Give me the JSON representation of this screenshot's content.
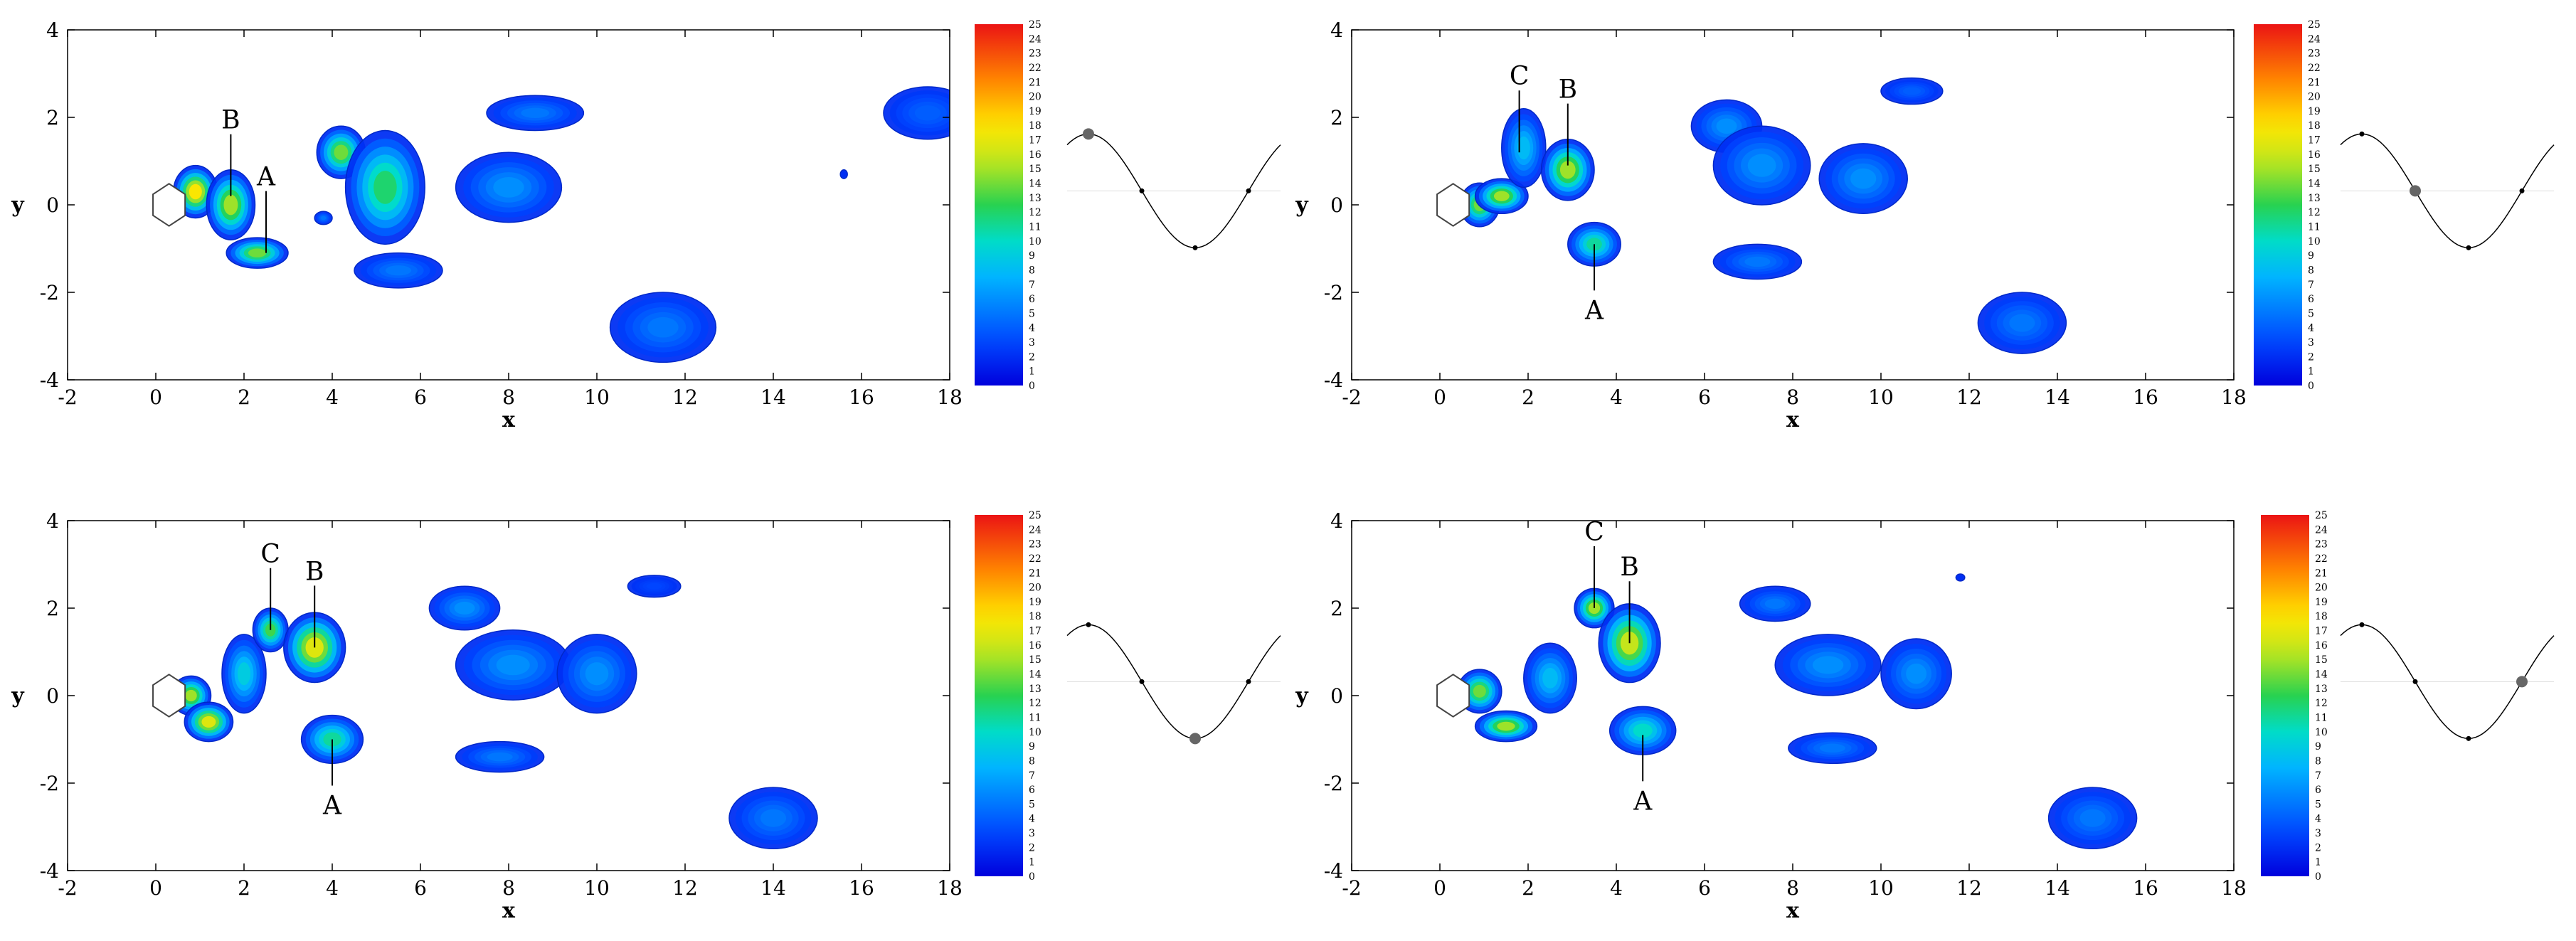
{
  "chart_data": [
    {
      "type": "contour",
      "panel": "top-left",
      "xlabel": "x",
      "ylabel": "y",
      "xlim": [
        -2,
        18
      ],
      "ylim": [
        -4,
        4
      ],
      "xticks": [
        "-2",
        "0",
        "2",
        "4",
        "6",
        "8",
        "10",
        "12",
        "14",
        "16",
        "18"
      ],
      "yticks": [
        "-4",
        "-2",
        "0",
        "2",
        "4"
      ],
      "colorbar": {
        "min": 0,
        "max": 25,
        "ticks": [
          "0",
          "1",
          "2",
          "3",
          "4",
          "5",
          "6",
          "7",
          "8",
          "9",
          "10",
          "11",
          "12",
          "13",
          "14",
          "15",
          "16",
          "17",
          "18",
          "19",
          "20",
          "21",
          "22",
          "23",
          "24",
          "25"
        ]
      },
      "annotations": [
        {
          "label": "B",
          "point": [
            1.7,
            0.2
          ]
        },
        {
          "label": "A",
          "point": [
            2.5,
            -1.1
          ]
        }
      ],
      "phase": 0.25,
      "vortices": [
        {
          "x": 0.9,
          "y": 0.3,
          "rx": 0.5,
          "ry": 0.6,
          "peak": 18
        },
        {
          "x": 1.7,
          "y": 0.0,
          "rx": 0.55,
          "ry": 0.8,
          "peak": 15
        },
        {
          "x": 2.3,
          "y": -1.1,
          "rx": 0.7,
          "ry": 0.35,
          "peak": 14
        },
        {
          "x": 4.2,
          "y": 1.2,
          "rx": 0.55,
          "ry": 0.6,
          "peak": 14
        },
        {
          "x": 5.2,
          "y": 0.4,
          "rx": 0.9,
          "ry": 1.3,
          "peak": 12
        },
        {
          "x": 3.8,
          "y": -0.3,
          "rx": 0.2,
          "ry": 0.15,
          "peak": 5
        },
        {
          "x": 8.6,
          "y": 2.1,
          "rx": 1.1,
          "ry": 0.4,
          "peak": 5
        },
        {
          "x": 8.0,
          "y": 0.4,
          "rx": 1.2,
          "ry": 0.8,
          "peak": 6
        },
        {
          "x": 5.5,
          "y": -1.5,
          "rx": 1.0,
          "ry": 0.4,
          "peak": 5
        },
        {
          "x": 11.5,
          "y": -2.8,
          "rx": 1.2,
          "ry": 0.8,
          "peak": 5
        },
        {
          "x": 17.5,
          "y": 2.1,
          "rx": 1.0,
          "ry": 0.6,
          "peak": 4
        },
        {
          "x": 15.6,
          "y": 0.7,
          "rx": 0.08,
          "ry": 0.1,
          "peak": 2
        }
      ]
    },
    {
      "type": "contour",
      "panel": "top-right",
      "xlabel": "x",
      "ylabel": "y",
      "xlim": [
        -2,
        18
      ],
      "ylim": [
        -4,
        4
      ],
      "xticks": [
        "-2",
        "0",
        "2",
        "4",
        "6",
        "8",
        "10",
        "12",
        "14",
        "16",
        "18"
      ],
      "yticks": [
        "-4",
        "-2",
        "0",
        "2",
        "4"
      ],
      "colorbar": {
        "min": 0,
        "max": 25,
        "ticks": [
          "0",
          "1",
          "2",
          "3",
          "4",
          "5",
          "6",
          "7",
          "8",
          "9",
          "10",
          "11",
          "12",
          "13",
          "14",
          "15",
          "16",
          "17",
          "18",
          "19",
          "20",
          "21",
          "22",
          "23",
          "24",
          "25"
        ]
      },
      "annotations": [
        {
          "label": "C",
          "point": [
            1.8,
            1.2
          ]
        },
        {
          "label": "B",
          "point": [
            2.9,
            0.9
          ]
        },
        {
          "label": "A",
          "point": [
            3.5,
            -0.9
          ]
        }
      ],
      "phase": 0.5,
      "vortices": [
        {
          "x": 0.9,
          "y": 0.0,
          "rx": 0.45,
          "ry": 0.5,
          "peak": 14
        },
        {
          "x": 1.4,
          "y": 0.2,
          "rx": 0.6,
          "ry": 0.4,
          "peak": 15
        },
        {
          "x": 1.9,
          "y": 1.3,
          "rx": 0.5,
          "ry": 0.9,
          "peak": 8
        },
        {
          "x": 2.9,
          "y": 0.8,
          "rx": 0.6,
          "ry": 0.7,
          "peak": 15
        },
        {
          "x": 3.5,
          "y": -0.9,
          "rx": 0.6,
          "ry": 0.5,
          "peak": 11
        },
        {
          "x": 6.5,
          "y": 1.8,
          "rx": 0.8,
          "ry": 0.6,
          "peak": 6
        },
        {
          "x": 7.3,
          "y": 0.9,
          "rx": 1.1,
          "ry": 0.9,
          "peak": 6
        },
        {
          "x": 9.6,
          "y": 0.6,
          "rx": 1.0,
          "ry": 0.8,
          "peak": 6
        },
        {
          "x": 10.7,
          "y": 2.6,
          "rx": 0.7,
          "ry": 0.3,
          "peak": 4
        },
        {
          "x": 7.2,
          "y": -1.3,
          "rx": 1.0,
          "ry": 0.4,
          "peak": 5
        },
        {
          "x": 13.2,
          "y": -2.7,
          "rx": 1.0,
          "ry": 0.7,
          "peak": 5
        }
      ]
    },
    {
      "type": "contour",
      "panel": "bottom-left",
      "xlabel": "x",
      "ylabel": "y",
      "xlim": [
        -2,
        18
      ],
      "ylim": [
        -4,
        4
      ],
      "xticks": [
        "-2",
        "0",
        "2",
        "4",
        "6",
        "8",
        "10",
        "12",
        "14",
        "16",
        "18"
      ],
      "yticks": [
        "-4",
        "-2",
        "0",
        "2",
        "4"
      ],
      "colorbar": {
        "min": 0,
        "max": 25,
        "ticks": [
          "0",
          "1",
          "2",
          "3",
          "4",
          "5",
          "6",
          "7",
          "8",
          "9",
          "10",
          "11",
          "12",
          "13",
          "14",
          "15",
          "16",
          "17",
          "18",
          "19",
          "20",
          "21",
          "22",
          "23",
          "24",
          "25"
        ]
      },
      "annotations": [
        {
          "label": "C",
          "point": [
            2.6,
            1.5
          ]
        },
        {
          "label": "B",
          "point": [
            3.6,
            1.1
          ]
        },
        {
          "label": "A",
          "point": [
            4.0,
            -1.0
          ]
        }
      ],
      "phase": 0.75,
      "vortices": [
        {
          "x": 0.8,
          "y": 0.0,
          "rx": 0.45,
          "ry": 0.45,
          "peak": 15
        },
        {
          "x": 1.2,
          "y": -0.6,
          "rx": 0.55,
          "ry": 0.45,
          "peak": 17
        },
        {
          "x": 2.0,
          "y": 0.5,
          "rx": 0.5,
          "ry": 0.9,
          "peak": 9
        },
        {
          "x": 2.6,
          "y": 1.5,
          "rx": 0.4,
          "ry": 0.5,
          "peak": 13
        },
        {
          "x": 3.6,
          "y": 1.1,
          "rx": 0.7,
          "ry": 0.8,
          "peak": 17
        },
        {
          "x": 4.0,
          "y": -1.0,
          "rx": 0.7,
          "ry": 0.55,
          "peak": 11
        },
        {
          "x": 7.0,
          "y": 2.0,
          "rx": 0.8,
          "ry": 0.5,
          "peak": 6
        },
        {
          "x": 8.1,
          "y": 0.7,
          "rx": 1.3,
          "ry": 0.8,
          "peak": 6
        },
        {
          "x": 10.0,
          "y": 0.5,
          "rx": 0.9,
          "ry": 0.9,
          "peak": 6
        },
        {
          "x": 11.3,
          "y": 2.5,
          "rx": 0.6,
          "ry": 0.25,
          "peak": 3
        },
        {
          "x": 7.8,
          "y": -1.4,
          "rx": 1.0,
          "ry": 0.35,
          "peak": 5
        },
        {
          "x": 14.0,
          "y": -2.8,
          "rx": 1.0,
          "ry": 0.7,
          "peak": 5
        }
      ]
    },
    {
      "type": "contour",
      "panel": "bottom-right",
      "xlabel": "x",
      "ylabel": "y",
      "xlim": [
        -2,
        18
      ],
      "ylim": [
        -4,
        4
      ],
      "xticks": [
        "-2",
        "0",
        "2",
        "4",
        "6",
        "8",
        "10",
        "12",
        "14",
        "16",
        "18"
      ],
      "yticks": [
        "-4",
        "-2",
        "0",
        "2",
        "4"
      ],
      "colorbar": {
        "min": 0,
        "max": 25,
        "ticks": [
          "0",
          "1",
          "2",
          "3",
          "4",
          "5",
          "6",
          "7",
          "8",
          "9",
          "10",
          "11",
          "12",
          "13",
          "14",
          "15",
          "16",
          "17",
          "18",
          "19",
          "20",
          "21",
          "22",
          "23",
          "24",
          "25"
        ]
      },
      "annotations": [
        {
          "label": "C",
          "point": [
            3.5,
            2.0
          ]
        },
        {
          "label": "B",
          "point": [
            4.3,
            1.2
          ]
        },
        {
          "label": "A",
          "point": [
            4.6,
            -0.9
          ]
        }
      ],
      "phase": 1.0,
      "vortices": [
        {
          "x": 0.9,
          "y": 0.1,
          "rx": 0.5,
          "ry": 0.5,
          "peak": 14
        },
        {
          "x": 1.5,
          "y": -0.7,
          "rx": 0.7,
          "ry": 0.35,
          "peak": 15
        },
        {
          "x": 2.5,
          "y": 0.4,
          "rx": 0.6,
          "ry": 0.8,
          "peak": 8
        },
        {
          "x": 3.5,
          "y": 2.0,
          "rx": 0.45,
          "ry": 0.45,
          "peak": 15
        },
        {
          "x": 4.3,
          "y": 1.2,
          "rx": 0.7,
          "ry": 0.9,
          "peak": 16
        },
        {
          "x": 4.6,
          "y": -0.8,
          "rx": 0.75,
          "ry": 0.55,
          "peak": 10
        },
        {
          "x": 7.6,
          "y": 2.1,
          "rx": 0.8,
          "ry": 0.4,
          "peak": 5
        },
        {
          "x": 8.8,
          "y": 0.7,
          "rx": 1.2,
          "ry": 0.7,
          "peak": 6
        },
        {
          "x": 10.8,
          "y": 0.5,
          "rx": 0.8,
          "ry": 0.8,
          "peak": 6
        },
        {
          "x": 8.9,
          "y": -1.2,
          "rx": 1.0,
          "ry": 0.35,
          "peak": 5
        },
        {
          "x": 11.8,
          "y": 2.7,
          "rx": 0.1,
          "ry": 0.08,
          "peak": 2
        },
        {
          "x": 14.8,
          "y": -2.8,
          "rx": 1.0,
          "ry": 0.7,
          "peak": 5
        }
      ]
    }
  ]
}
